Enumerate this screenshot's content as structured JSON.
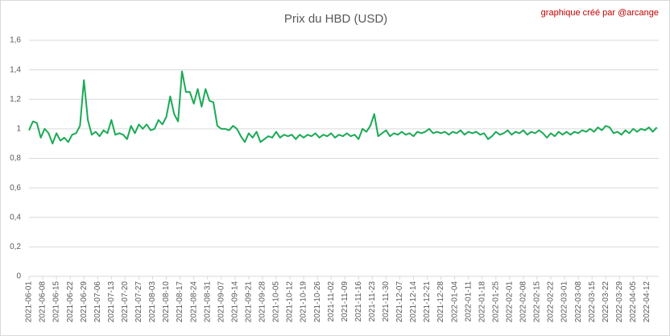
{
  "chart_data": {
    "type": "line",
    "title": "Prix du HBD (USD)",
    "annotation": "graphique créé par @arcange",
    "x": [
      "2021-06-01",
      "2021-06-03",
      "2021-06-05",
      "2021-06-07",
      "2021-06-09",
      "2021-06-11",
      "2021-06-13",
      "2021-06-15",
      "2021-06-17",
      "2021-06-19",
      "2021-06-21",
      "2021-06-23",
      "2021-06-25",
      "2021-06-27",
      "2021-06-29",
      "2021-07-01",
      "2021-07-03",
      "2021-07-05",
      "2021-07-07",
      "2021-07-09",
      "2021-07-11",
      "2021-07-13",
      "2021-07-15",
      "2021-07-17",
      "2021-07-19",
      "2021-07-21",
      "2021-07-23",
      "2021-07-25",
      "2021-07-27",
      "2021-07-29",
      "2021-07-31",
      "2021-08-02",
      "2021-08-04",
      "2021-08-06",
      "2021-08-08",
      "2021-08-10",
      "2021-08-12",
      "2021-08-14",
      "2021-08-16",
      "2021-08-18",
      "2021-08-20",
      "2021-08-22",
      "2021-08-24",
      "2021-08-26",
      "2021-08-28",
      "2021-08-30",
      "2021-09-01",
      "2021-09-03",
      "2021-09-05",
      "2021-09-07",
      "2021-09-09",
      "2021-09-11",
      "2021-09-13",
      "2021-09-15",
      "2021-09-17",
      "2021-09-19",
      "2021-09-21",
      "2021-09-23",
      "2021-09-25",
      "2021-09-27",
      "2021-09-29",
      "2021-10-01",
      "2021-10-03",
      "2021-10-05",
      "2021-10-07",
      "2021-10-09",
      "2021-10-11",
      "2021-10-13",
      "2021-10-15",
      "2021-10-17",
      "2021-10-19",
      "2021-10-21",
      "2021-10-23",
      "2021-10-25",
      "2021-10-27",
      "2021-10-29",
      "2021-10-31",
      "2021-11-02",
      "2021-11-04",
      "2021-11-06",
      "2021-11-08",
      "2021-11-10",
      "2021-11-12",
      "2021-11-14",
      "2021-11-16",
      "2021-11-18",
      "2021-11-20",
      "2021-11-22",
      "2021-11-24",
      "2021-11-26",
      "2021-11-28",
      "2021-11-30",
      "2021-12-02",
      "2021-12-04",
      "2021-12-06",
      "2021-12-08",
      "2021-12-10",
      "2021-12-12",
      "2021-12-14",
      "2021-12-16",
      "2021-12-18",
      "2021-12-20",
      "2021-12-22",
      "2021-12-24",
      "2021-12-26",
      "2021-12-28",
      "2021-12-30",
      "2022-01-01",
      "2022-01-03",
      "2022-01-05",
      "2022-01-07",
      "2022-01-09",
      "2022-01-11",
      "2022-01-13",
      "2022-01-15",
      "2022-01-17",
      "2022-01-19",
      "2022-01-21",
      "2022-01-23",
      "2022-01-25",
      "2022-01-27",
      "2022-01-29",
      "2022-01-31",
      "2022-02-02",
      "2022-02-04",
      "2022-02-06",
      "2022-02-08",
      "2022-02-10",
      "2022-02-12",
      "2022-02-14",
      "2022-02-16",
      "2022-02-18",
      "2022-02-20",
      "2022-02-22",
      "2022-02-24",
      "2022-02-26",
      "2022-02-28",
      "2022-03-02",
      "2022-03-04",
      "2022-03-06",
      "2022-03-08",
      "2022-03-10",
      "2022-03-12",
      "2022-03-14",
      "2022-03-16",
      "2022-03-18",
      "2022-03-20",
      "2022-03-22",
      "2022-03-24",
      "2022-03-26",
      "2022-03-28",
      "2022-03-30",
      "2022-04-01",
      "2022-04-03",
      "2022-04-05",
      "2022-04-07",
      "2022-04-09",
      "2022-04-11",
      "2022-04-13",
      "2022-04-15",
      "2022-04-17"
    ],
    "series": [
      {
        "name": "HBD",
        "color": "#1aaa55",
        "values": [
          0.99,
          1.05,
          1.04,
          0.94,
          1.0,
          0.97,
          0.9,
          0.97,
          0.92,
          0.94,
          0.91,
          0.96,
          0.97,
          1.02,
          1.33,
          1.06,
          0.96,
          0.98,
          0.95,
          0.99,
          0.97,
          1.06,
          0.96,
          0.97,
          0.96,
          0.93,
          1.02,
          0.97,
          1.03,
          1.0,
          1.03,
          0.99,
          1.0,
          1.06,
          1.03,
          1.08,
          1.22,
          1.1,
          1.05,
          1.39,
          1.25,
          1.25,
          1.17,
          1.27,
          1.15,
          1.27,
          1.19,
          1.18,
          1.02,
          1.0,
          1.0,
          0.99,
          1.02,
          1.0,
          0.95,
          0.91,
          0.97,
          0.94,
          0.98,
          0.91,
          0.93,
          0.95,
          0.94,
          0.98,
          0.94,
          0.96,
          0.95,
          0.96,
          0.93,
          0.96,
          0.94,
          0.96,
          0.95,
          0.97,
          0.94,
          0.96,
          0.95,
          0.97,
          0.94,
          0.96,
          0.95,
          0.97,
          0.95,
          0.96,
          0.93,
          1.0,
          0.98,
          1.02,
          1.1,
          0.95,
          0.97,
          0.99,
          0.95,
          0.97,
          0.96,
          0.98,
          0.96,
          0.97,
          0.95,
          0.98,
          0.97,
          0.98,
          1.0,
          0.97,
          0.98,
          0.97,
          0.98,
          0.96,
          0.98,
          0.97,
          0.99,
          0.96,
          0.98,
          0.97,
          0.98,
          0.96,
          0.97,
          0.93,
          0.95,
          0.98,
          0.96,
          0.97,
          0.99,
          0.96,
          0.98,
          0.97,
          0.99,
          0.96,
          0.98,
          0.97,
          0.99,
          0.97,
          0.94,
          0.97,
          0.95,
          0.98,
          0.96,
          0.98,
          0.96,
          0.98,
          0.97,
          0.99,
          0.98,
          1.0,
          0.98,
          1.01,
          0.99,
          1.02,
          1.01,
          0.97,
          0.98,
          0.96,
          0.99,
          0.97,
          1.0,
          0.98,
          1.0,
          0.99,
          1.01,
          0.98,
          1.01
        ]
      }
    ],
    "xlim": [
      "2021-06-01",
      "2022-04-18"
    ],
    "xticks": [
      "2021-06-01",
      "2021-06-08",
      "2021-06-15",
      "2021-06-22",
      "2021-06-29",
      "2021-07-06",
      "2021-07-13",
      "2021-07-20",
      "2021-07-27",
      "2021-08-03",
      "2021-08-10",
      "2021-08-17",
      "2021-08-24",
      "2021-08-31",
      "2021-09-07",
      "2021-09-14",
      "2021-09-21",
      "2021-09-28",
      "2021-10-05",
      "2021-10-12",
      "2021-10-19",
      "2021-10-26",
      "2021-11-02",
      "2021-11-09",
      "2021-11-16",
      "2021-11-23",
      "2021-11-30",
      "2021-12-07",
      "2021-12-14",
      "2021-12-21",
      "2021-12-28",
      "2022-01-04",
      "2022-01-11",
      "2022-01-18",
      "2022-01-25",
      "2022-02-01",
      "2022-02-08",
      "2022-02-15",
      "2022-02-22",
      "2022-03-01",
      "2022-03-08",
      "2022-03-15",
      "2022-03-22",
      "2022-03-29",
      "2022-04-05",
      "2022-04-12"
    ],
    "ylim": [
      0,
      1.6
    ],
    "yticks": [
      0,
      {
        "value": 0.2,
        "label": "0,2"
      },
      {
        "value": 0.4,
        "label": "0,4"
      },
      {
        "value": 0.6,
        "label": "0,6"
      },
      {
        "value": 0.8,
        "label": "0,8"
      },
      1,
      {
        "value": 1.2,
        "label": "1,2"
      },
      {
        "value": 1.4,
        "label": "1,4"
      },
      {
        "value": 1.6,
        "label": "1,6"
      }
    ],
    "grid": true
  }
}
